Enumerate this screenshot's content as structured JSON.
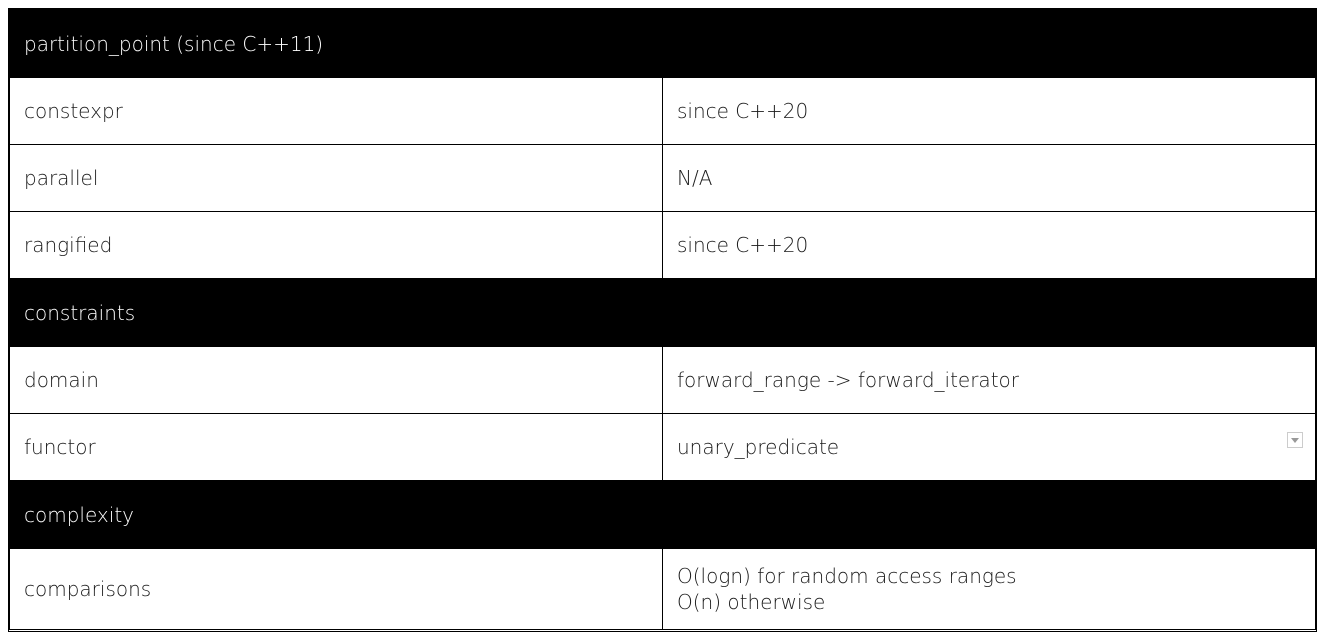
{
  "sections": {
    "header": "partition_point (since C++11)",
    "constraints": "constraints",
    "complexity": "complexity"
  },
  "rows": {
    "constexpr": {
      "label": "constexpr",
      "value": "since C++20"
    },
    "parallel": {
      "label": "parallel",
      "value": "N/A"
    },
    "rangified": {
      "label": "rangified",
      "value": "since C++20"
    },
    "domain": {
      "label": "domain",
      "value": "forward_range -> forward_iterator"
    },
    "functor": {
      "label": "functor",
      "value": "unary_predicate"
    },
    "comparisons": {
      "label": "comparisons",
      "value_lines": [
        "O(logn) for random access ranges",
        "O(n) otherwise"
      ]
    }
  },
  "icons": {
    "functor_row_marker": "dropdown-arrow-icon"
  }
}
